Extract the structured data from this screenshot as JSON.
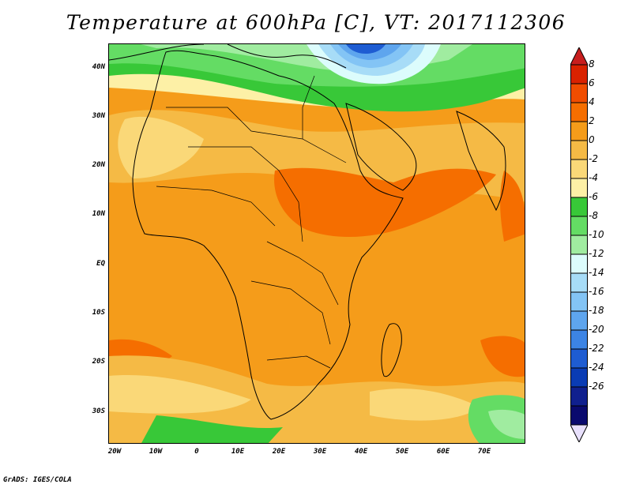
{
  "title": "Temperature at 600hPa [C], VT: 2017112306",
  "credit": "GrADS: IGES/COLA",
  "lat_labels": [
    "40N",
    "30N",
    "20N",
    "10N",
    "EQ",
    "10S",
    "20S",
    "30S"
  ],
  "lon_labels": [
    "20W",
    "10W",
    "0",
    "10E",
    "20E",
    "30E",
    "40E",
    "50E",
    "60E",
    "70E"
  ],
  "colorbar": {
    "labels": [
      "8",
      "6",
      "4",
      "2",
      "0",
      "-2",
      "-4",
      "-6",
      "-8",
      "-10",
      "-12",
      "-14",
      "-16",
      "-18",
      "-20",
      "-22",
      "-24",
      "-26"
    ],
    "colors": [
      "#d92200",
      "#f04d00",
      "#f56e00",
      "#f59c1a",
      "#f5ba45",
      "#fad878",
      "#fdf0a6",
      "#38c838",
      "#64dc64",
      "#a0eca0",
      "#dcfcfc",
      "#a7dcf7",
      "#83c4f5",
      "#5ea5ee",
      "#3c84e4",
      "#1e5cd2",
      "#0a3cb4",
      "#10208e",
      "#0a0a6e"
    ],
    "top_arrow_color": "#c81e1e",
    "bottom_arrow_color": "#e8e0fc"
  },
  "legend_colors": {
    "orange": "#f59c1a",
    "dark_orange": "#f56e00",
    "light_orange": "#f5ba45",
    "yellow": "#fad878",
    "cream": "#fdf0a6",
    "green": "#38c838",
    "light_green": "#64dc64",
    "pale_green": "#a0eca0",
    "cyan": "#dcfcfc",
    "light_blue": "#a7dcf7",
    "blue": "#5ea5ee",
    "deep_blue": "#1e5cd2"
  }
}
